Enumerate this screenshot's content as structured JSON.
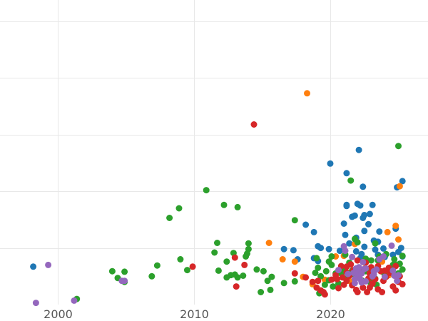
{
  "chart_data": {
    "type": "scatter",
    "title": "",
    "xlabel": "",
    "ylabel": "",
    "xlim": [
      1996,
      2027
    ],
    "ylim": [
      0,
      1
    ],
    "x_ticks": [
      2000,
      2010,
      2020
    ],
    "x_tick_labels": [
      "2000",
      "2010",
      "2020"
    ],
    "y_gridlines": [
      0.2,
      0.4,
      0.6,
      0.8,
      1.0
    ],
    "grid": true,
    "legend": "none",
    "colors": {
      "blue": "#1f77b4",
      "orange": "#ff7f0e",
      "green": "#2ca02c",
      "red": "#d62728",
      "purple": "#9467bd"
    },
    "series": [
      {
        "color": "#1f77b4",
        "points": [
          [
            1998.2,
            0.134
          ],
          [
            2020.0,
            0.498
          ],
          [
            2021.2,
            0.464
          ],
          [
            2021.2,
            0.352
          ],
          [
            2021.2,
            0.348
          ],
          [
            2021.6,
            0.31
          ],
          [
            2021.8,
            0.314
          ],
          [
            2022.0,
            0.356
          ],
          [
            2022.1,
            0.546
          ],
          [
            2022.4,
            0.416
          ],
          [
            2022.2,
            0.35
          ],
          [
            2022.5,
            0.316
          ],
          [
            2022.4,
            0.306
          ],
          [
            2022.9,
            0.32
          ],
          [
            2023.1,
            0.352
          ],
          [
            2022.8,
            0.284
          ],
          [
            2023.6,
            0.258
          ],
          [
            2023.5,
            0.222
          ],
          [
            2022.5,
            0.26
          ],
          [
            2021.9,
            0.236
          ],
          [
            2021.0,
            0.286
          ],
          [
            2021.1,
            0.246
          ],
          [
            2018.2,
            0.282
          ],
          [
            2018.8,
            0.256
          ],
          [
            2019.1,
            0.206
          ],
          [
            2019.3,
            0.2
          ],
          [
            2019.9,
            0.196
          ],
          [
            2016.6,
            0.196
          ],
          [
            2017.3,
            0.192
          ],
          [
            2025.3,
            0.436
          ],
          [
            2024.9,
            0.414
          ],
          [
            2024.8,
            0.268
          ],
          [
            2025.2,
            0.2
          ],
          [
            2023.2,
            0.226
          ],
          [
            2023.9,
            0.198
          ],
          [
            2021.4,
            0.216
          ],
          [
            2022.5,
            0.204
          ],
          [
            2020.7,
            0.19
          ],
          [
            2021.9,
            0.188
          ],
          [
            2022.3,
            0.178
          ],
          [
            2023.3,
            0.194
          ],
          [
            2017.6,
            0.16
          ],
          [
            2018.8,
            0.164
          ],
          [
            2019.1,
            0.154
          ],
          [
            2022.2,
            0.164
          ],
          [
            2024.0,
            0.168
          ],
          [
            2025.0,
            0.186
          ],
          [
            2025.3,
            0.17
          ],
          [
            2023.5,
            0.176
          ],
          [
            2024.6,
            0.176
          ]
        ]
      },
      {
        "color": "#ff7f0e",
        "points": [
          [
            2018.3,
            0.746
          ],
          [
            2025.1,
            0.418
          ],
          [
            2024.8,
            0.278
          ],
          [
            2024.2,
            0.256
          ],
          [
            2025.0,
            0.23
          ],
          [
            2015.5,
            0.218
          ],
          [
            2016.5,
            0.16
          ],
          [
            2017.4,
            0.152
          ],
          [
            2021.0,
            0.172
          ],
          [
            2020.4,
            0.17
          ],
          [
            2021.8,
            0.214
          ],
          [
            2022.5,
            0.148
          ],
          [
            2023.8,
            0.152
          ],
          [
            2024.3,
            0.104
          ],
          [
            2018.0,
            0.098
          ],
          [
            2018.7,
            0.072
          ],
          [
            2019.6,
            0.088
          ],
          [
            2021.4,
            0.084
          ],
          [
            2023.1,
            0.078
          ]
        ]
      },
      {
        "color": "#2ca02c",
        "points": [
          [
            2025.0,
            0.56
          ],
          [
            2021.5,
            0.438
          ],
          [
            2010.9,
            0.404
          ],
          [
            2012.2,
            0.352
          ],
          [
            2013.2,
            0.344
          ],
          [
            2008.9,
            0.34
          ],
          [
            2008.2,
            0.306
          ],
          [
            2017.4,
            0.298
          ],
          [
            2011.7,
            0.218
          ],
          [
            2014.0,
            0.216
          ],
          [
            2014.0,
            0.196
          ],
          [
            2011.5,
            0.184
          ],
          [
            2012.9,
            0.182
          ],
          [
            2009.0,
            0.16
          ],
          [
            2012.4,
            0.152
          ],
          [
            2007.3,
            0.138
          ],
          [
            2013.9,
            0.18
          ],
          [
            2013.8,
            0.17
          ],
          [
            2014.6,
            0.124
          ],
          [
            2015.1,
            0.118
          ],
          [
            2015.7,
            0.098
          ],
          [
            2013.0,
            0.106
          ],
          [
            2013.6,
            0.102
          ],
          [
            2012.7,
            0.104
          ],
          [
            2012.4,
            0.096
          ],
          [
            2013.2,
            0.096
          ],
          [
            2009.5,
            0.122
          ],
          [
            2011.8,
            0.12
          ],
          [
            2004.0,
            0.118
          ],
          [
            2004.9,
            0.116
          ],
          [
            2004.4,
            0.094
          ],
          [
            2006.9,
            0.1
          ],
          [
            2004.9,
            0.08
          ],
          [
            2001.4,
            0.02
          ],
          [
            2015.4,
            0.084
          ],
          [
            2015.6,
            0.052
          ],
          [
            2014.9,
            0.044
          ],
          [
            2016.6,
            0.076
          ],
          [
            2017.4,
            0.082
          ],
          [
            2019.0,
            0.164
          ],
          [
            2020.1,
            0.17
          ],
          [
            2019.9,
            0.152
          ],
          [
            2021.1,
            0.176
          ],
          [
            2021.8,
            0.232
          ],
          [
            2022.0,
            0.22
          ],
          [
            2023.3,
            0.216
          ],
          [
            2023.6,
            0.17
          ],
          [
            2024.1,
            0.178
          ],
          [
            2024.7,
            0.16
          ],
          [
            2025.3,
            0.172
          ],
          [
            2025.1,
            0.144
          ],
          [
            2024.6,
            0.14
          ],
          [
            2023.0,
            0.13
          ],
          [
            2022.6,
            0.118
          ],
          [
            2021.6,
            0.12
          ],
          [
            2021.0,
            0.128
          ],
          [
            2020.4,
            0.11
          ],
          [
            2019.7,
            0.118
          ],
          [
            2019.3,
            0.1
          ],
          [
            2019.9,
            0.086
          ],
          [
            2020.6,
            0.074
          ],
          [
            2021.2,
            0.094
          ],
          [
            2022.3,
            0.086
          ],
          [
            2023.3,
            0.092
          ],
          [
            2024.0,
            0.102
          ],
          [
            2025.0,
            0.11
          ],
          [
            2025.3,
            0.124
          ],
          [
            2019.6,
            0.07
          ],
          [
            2019.2,
            0.04
          ],
          [
            2020.2,
            0.064
          ],
          [
            2023.0,
            0.156
          ],
          [
            2023.5,
            0.156
          ],
          [
            2022.6,
            0.162
          ],
          [
            2021.4,
            0.148
          ],
          [
            2020.1,
            0.14
          ],
          [
            2022.1,
            0.13
          ],
          [
            2024.7,
            0.144
          ],
          [
            2023.9,
            0.114
          ],
          [
            2021.8,
            0.106
          ],
          [
            2020.8,
            0.11
          ],
          [
            2019.1,
            0.13
          ],
          [
            2018.9,
            0.112
          ],
          [
            2022.9,
            0.08
          ],
          [
            2023.4,
            0.07
          ]
        ]
      },
      {
        "color": "#d62728",
        "points": [
          [
            2014.4,
            0.636
          ],
          [
            2009.9,
            0.134
          ],
          [
            2013.7,
            0.14
          ],
          [
            2013.0,
            0.166
          ],
          [
            2013.1,
            0.064
          ],
          [
            2017.4,
            0.11
          ],
          [
            2018.2,
            0.096
          ],
          [
            2018.7,
            0.08
          ],
          [
            2019.0,
            0.06
          ],
          [
            2019.3,
            0.05
          ],
          [
            2019.5,
            0.044
          ],
          [
            2019.6,
            0.036
          ],
          [
            2020.5,
            0.09
          ],
          [
            2020.9,
            0.096
          ],
          [
            2021.0,
            0.07
          ],
          [
            2021.2,
            0.084
          ],
          [
            2021.6,
            0.068
          ],
          [
            2021.9,
            0.052
          ],
          [
            2022.0,
            0.044
          ],
          [
            2022.4,
            0.06
          ],
          [
            2022.7,
            0.044
          ],
          [
            2022.9,
            0.06
          ],
          [
            2023.1,
            0.074
          ],
          [
            2023.3,
            0.09
          ],
          [
            2023.5,
            0.054
          ],
          [
            2023.8,
            0.044
          ],
          [
            2023.9,
            0.084
          ],
          [
            2024.1,
            0.098
          ],
          [
            2024.4,
            0.112
          ],
          [
            2024.6,
            0.064
          ],
          [
            2024.8,
            0.05
          ],
          [
            2025.0,
            0.08
          ],
          [
            2025.3,
            0.072
          ],
          [
            2024.3,
            0.13
          ],
          [
            2023.5,
            0.136
          ],
          [
            2022.9,
            0.11
          ],
          [
            2022.3,
            0.116
          ],
          [
            2021.7,
            0.122
          ],
          [
            2021.2,
            0.114
          ],
          [
            2020.8,
            0.136
          ],
          [
            2020.4,
            0.104
          ],
          [
            2021.5,
            0.142
          ],
          [
            2022.0,
            0.156
          ],
          [
            2022.6,
            0.148
          ],
          [
            2023.0,
            0.132
          ],
          [
            2024.0,
            0.12
          ],
          [
            2024.8,
            0.136
          ],
          [
            2025.1,
            0.1
          ],
          [
            2020.1,
            0.088
          ],
          [
            2019.1,
            0.084
          ],
          [
            2020.6,
            0.058
          ],
          [
            2021.4,
            0.102
          ],
          [
            2021.2,
            0.134
          ],
          [
            2022.8,
            0.092
          ],
          [
            2023.7,
            0.118
          ]
        ]
      },
      {
        "color": "#9467bd",
        "points": [
          [
            1999.3,
            0.14
          ],
          [
            1998.4,
            0.006
          ],
          [
            2001.2,
            0.014
          ],
          [
            2004.7,
            0.084
          ],
          [
            2004.9,
            0.084
          ],
          [
            2021.0,
            0.206
          ],
          [
            2021.1,
            0.19
          ],
          [
            2021.6,
            0.168
          ],
          [
            2021.9,
            0.128
          ],
          [
            2022.1,
            0.132
          ],
          [
            2022.4,
            0.15
          ],
          [
            2022.0,
            0.1
          ],
          [
            2021.8,
            0.09
          ],
          [
            2022.6,
            0.082
          ],
          [
            2023.1,
            0.1
          ],
          [
            2023.6,
            0.16
          ],
          [
            2023.9,
            0.17
          ],
          [
            2024.5,
            0.208
          ],
          [
            2024.6,
            0.12
          ],
          [
            2025.0,
            0.104
          ],
          [
            2024.9,
            0.084
          ],
          [
            2023.2,
            0.106
          ],
          [
            2022.3,
            0.078
          ],
          [
            2020.6,
            0.122
          ],
          [
            2021.7,
            0.112
          ],
          [
            2022.1,
            0.114
          ],
          [
            2022.5,
            0.126
          ],
          [
            2023.4,
            0.124
          ],
          [
            2024.0,
            0.098
          ],
          [
            2024.7,
            0.102
          ],
          [
            2022.2,
            0.09
          ],
          [
            2021.8,
            0.076
          ],
          [
            2022.3,
            0.11
          ],
          [
            2023.2,
            0.118
          ],
          [
            2022.6,
            0.128
          ],
          [
            2021.3,
            0.108
          ]
        ]
      }
    ]
  }
}
